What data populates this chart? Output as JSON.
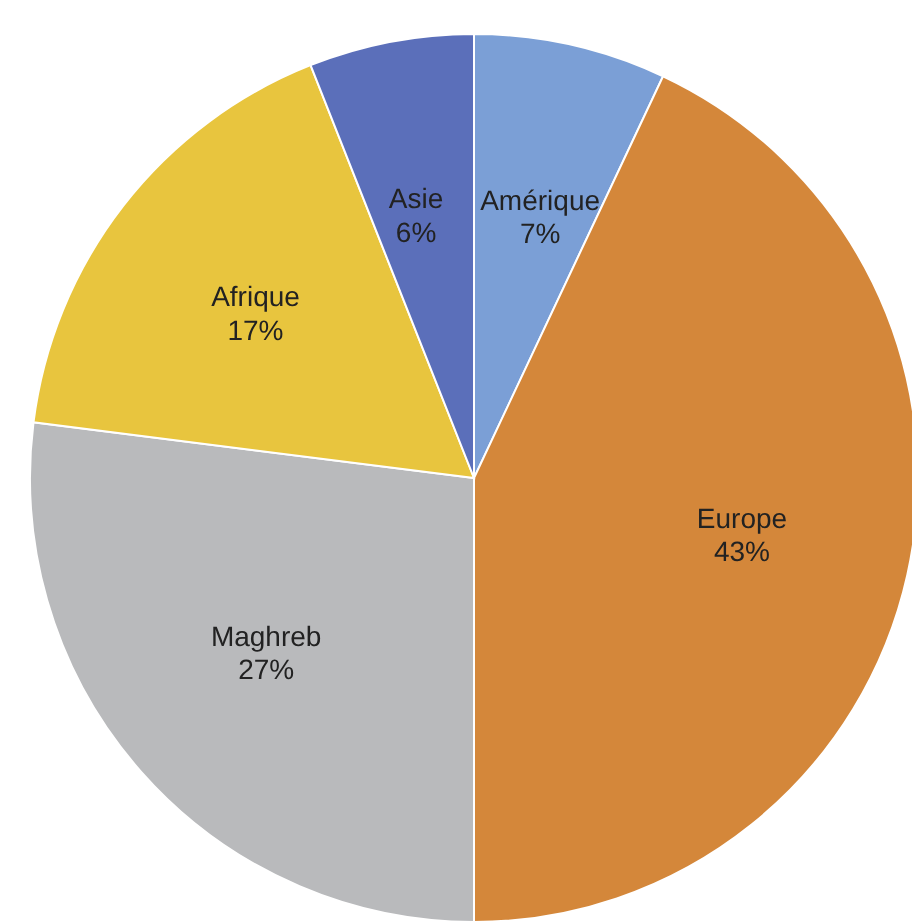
{
  "chart_data": {
    "type": "pie",
    "categories": [
      "Amérique",
      "Europe",
      "Maghreb",
      "Afrique",
      "Asie"
    ],
    "values": [
      7,
      43,
      27,
      17,
      6
    ],
    "colors": [
      "#7b9fd6",
      "#d4873a",
      "#b9babc",
      "#e8c53e",
      "#5b6fba"
    ],
    "value_labels": [
      "7%",
      "43%",
      "27%",
      "17%",
      "6%"
    ],
    "legend": false
  }
}
